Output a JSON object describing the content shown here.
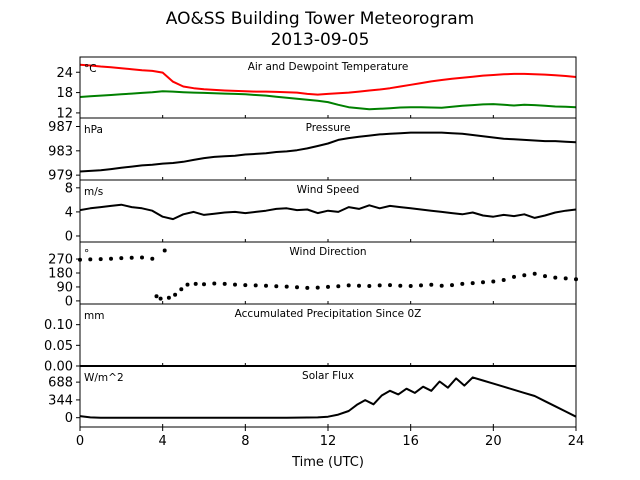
{
  "figure": {
    "title_line1": "AO&SS Building Tower Meteorogram",
    "title_line2": "2013-09-05",
    "xlabel": "Time (UTC)",
    "xlim": [
      0,
      24
    ],
    "xticks": [
      0,
      4,
      8,
      12,
      16,
      20,
      24
    ]
  },
  "chart_data": [
    {
      "type": "line",
      "title": "Air and Dewpoint Temperature",
      "unit_label": "°C",
      "ylim": [
        10.5,
        28.5
      ],
      "yticks": [
        12,
        18,
        24
      ],
      "series": [
        {
          "color": "#ff0000",
          "x": [
            0,
            0.5,
            1,
            1.5,
            2,
            2.5,
            3,
            3.5,
            4,
            4.5,
            5,
            5.5,
            6,
            6.5,
            7,
            7.5,
            8,
            8.5,
            9,
            9.5,
            10,
            10.5,
            11,
            11.5,
            12,
            12.5,
            13,
            13.5,
            14,
            14.5,
            15,
            15.5,
            16,
            16.5,
            17,
            17.5,
            18,
            18.5,
            19,
            19.5,
            20,
            20.5,
            21,
            21.5,
            22,
            22.5,
            23,
            23.5,
            24
          ],
          "y": [
            26.2,
            26.0,
            25.7,
            25.5,
            25.2,
            24.9,
            24.6,
            24.4,
            23.9,
            21.2,
            19.8,
            19.3,
            19.0,
            18.8,
            18.6,
            18.5,
            18.4,
            18.3,
            18.3,
            18.2,
            18.1,
            18.0,
            17.6,
            17.4,
            17.6,
            17.8,
            18.0,
            18.3,
            18.6,
            18.9,
            19.3,
            19.8,
            20.3,
            20.8,
            21.3,
            21.7,
            22.1,
            22.4,
            22.7,
            23.0,
            23.2,
            23.4,
            23.5,
            23.5,
            23.4,
            23.3,
            23.1,
            22.9,
            22.6
          ]
        },
        {
          "color": "#008000",
          "x": [
            0,
            0.5,
            1,
            1.5,
            2,
            2.5,
            3,
            3.5,
            4,
            4.5,
            5,
            5.5,
            6,
            6.5,
            7,
            7.5,
            8,
            8.5,
            9,
            9.5,
            10,
            10.5,
            11,
            11.5,
            12,
            12.5,
            13,
            13.5,
            14,
            14.5,
            15,
            15.5,
            16,
            16.5,
            17,
            17.5,
            18,
            18.5,
            19,
            19.5,
            20,
            20.5,
            21,
            21.5,
            22,
            22.5,
            23,
            23.5,
            24
          ],
          "y": [
            16.7,
            16.9,
            17.1,
            17.3,
            17.5,
            17.7,
            17.9,
            18.1,
            18.4,
            18.3,
            18.1,
            18.0,
            17.9,
            17.8,
            17.7,
            17.6,
            17.5,
            17.3,
            17.1,
            16.8,
            16.5,
            16.2,
            15.9,
            15.6,
            15.2,
            14.4,
            13.7,
            13.4,
            13.1,
            13.2,
            13.4,
            13.6,
            13.7,
            13.7,
            13.6,
            13.5,
            13.8,
            14.1,
            14.3,
            14.5,
            14.6,
            14.4,
            14.2,
            14.4,
            14.3,
            14.1,
            13.9,
            13.8,
            13.7
          ]
        }
      ]
    },
    {
      "type": "line",
      "title": "Pressure",
      "unit_label": "hPa",
      "ylim": [
        978.2,
        988.4
      ],
      "yticks": [
        979,
        983,
        987
      ],
      "series": [
        {
          "color": "#000000",
          "x": [
            0,
            0.5,
            1,
            1.5,
            2,
            2.5,
            3,
            3.5,
            4,
            4.5,
            5,
            5.5,
            6,
            6.5,
            7,
            7.5,
            8,
            8.5,
            9,
            9.5,
            10,
            10.5,
            11,
            11.5,
            12,
            12.5,
            13,
            13.5,
            14,
            14.5,
            15,
            15.5,
            16,
            16.5,
            17,
            17.5,
            18,
            18.5,
            19,
            19.5,
            20,
            20.5,
            21,
            21.5,
            22,
            22.5,
            23,
            23.5,
            24
          ],
          "y": [
            979.6,
            979.7,
            979.8,
            980.0,
            980.2,
            980.4,
            980.6,
            980.7,
            980.9,
            981.0,
            981.2,
            981.5,
            981.8,
            982.0,
            982.1,
            982.2,
            982.4,
            982.5,
            982.6,
            982.8,
            982.9,
            983.1,
            983.4,
            983.8,
            984.2,
            984.8,
            985.1,
            985.3,
            985.5,
            985.7,
            985.8,
            985.9,
            986.0,
            986.0,
            986.0,
            986.0,
            985.9,
            985.8,
            985.6,
            985.4,
            985.2,
            985.0,
            984.9,
            984.8,
            984.7,
            984.6,
            984.6,
            984.5,
            984.4
          ]
        }
      ]
    },
    {
      "type": "line",
      "title": "Wind Speed",
      "unit_label": "m/s",
      "ylim": [
        -1.0,
        9.3
      ],
      "yticks": [
        0,
        4,
        8
      ],
      "series": [
        {
          "color": "#000000",
          "x": [
            0,
            0.5,
            1,
            1.5,
            2,
            2.5,
            3,
            3.5,
            4,
            4.5,
            5,
            5.5,
            6,
            6.5,
            7,
            7.5,
            8,
            8.5,
            9,
            9.5,
            10,
            10.5,
            11,
            11.5,
            12,
            12.5,
            13,
            13.5,
            14,
            14.5,
            15,
            15.5,
            16,
            16.5,
            17,
            17.5,
            18,
            18.5,
            19,
            19.5,
            20,
            20.5,
            21,
            21.5,
            22,
            22.5,
            23,
            23.5,
            24
          ],
          "y": [
            4.3,
            4.6,
            4.8,
            5.0,
            5.2,
            4.8,
            4.6,
            4.2,
            3.2,
            2.8,
            3.6,
            4.0,
            3.5,
            3.7,
            3.9,
            4.0,
            3.8,
            4.0,
            4.2,
            4.5,
            4.6,
            4.3,
            4.4,
            3.8,
            4.2,
            4.0,
            4.8,
            4.5,
            5.1,
            4.6,
            5.0,
            4.8,
            4.6,
            4.4,
            4.2,
            4.0,
            3.8,
            3.6,
            3.9,
            3.4,
            3.2,
            3.5,
            3.3,
            3.6,
            3.0,
            3.4,
            3.9,
            4.2,
            4.4
          ]
        }
      ]
    },
    {
      "type": "scatter",
      "title": "Wind Direction",
      "unit_label": "°",
      "ylim": [
        -20,
        380
      ],
      "yticks": [
        0,
        90,
        180,
        270
      ],
      "series": [
        {
          "color": "#000000",
          "x": [
            0,
            0.5,
            1,
            1.5,
            2,
            2.5,
            3,
            3.5,
            3.7,
            3.9,
            4.1,
            4.3,
            4.6,
            4.9,
            5.2,
            5.6,
            6,
            6.5,
            7,
            7.5,
            8,
            8.5,
            9,
            9.5,
            10,
            10.5,
            11,
            11.5,
            12,
            12.5,
            13,
            13.5,
            14,
            14.5,
            15,
            15.5,
            16,
            16.5,
            17,
            17.5,
            18,
            18.5,
            19,
            19.5,
            20,
            20.5,
            21,
            21.5,
            22,
            22.5,
            23,
            23.5,
            24
          ],
          "y": [
            265,
            268,
            270,
            272,
            276,
            278,
            280,
            272,
            30,
            15,
            325,
            20,
            40,
            75,
            105,
            110,
            108,
            112,
            110,
            105,
            102,
            100,
            98,
            95,
            92,
            88,
            84,
            86,
            90,
            95,
            100,
            98,
            96,
            100,
            102,
            98,
            96,
            100,
            104,
            98,
            102,
            110,
            115,
            120,
            125,
            135,
            155,
            165,
            175,
            160,
            150,
            145,
            140
          ]
        }
      ]
    },
    {
      "type": "line",
      "title": "Accumulated Precipitation Since 0Z",
      "unit_label": "mm",
      "ylim": [
        0,
        0.15
      ],
      "yticks": [
        "0.00",
        "0.05",
        "0.10"
      ],
      "series": [
        {
          "color": "#000000",
          "x": [
            0,
            24
          ],
          "y": [
            0,
            0
          ]
        }
      ]
    },
    {
      "type": "line",
      "title": "Solar Flux",
      "unit_label": "W/m^2",
      "ylim": [
        -180,
        1000
      ],
      "yticks": [
        0,
        344,
        688
      ],
      "series": [
        {
          "color": "#000000",
          "x": [
            0,
            0.5,
            1,
            2,
            4,
            6,
            8,
            10,
            11.5,
            12,
            12.5,
            13,
            13.4,
            13.8,
            14.2,
            14.6,
            15,
            15.4,
            15.8,
            16.2,
            16.6,
            17,
            17.4,
            17.8,
            18.2,
            18.6,
            19,
            19.5,
            20,
            20.5,
            21,
            21.5,
            22,
            22.5,
            23,
            23.5,
            24
          ],
          "y": [
            30,
            5,
            0,
            0,
            0,
            0,
            0,
            0,
            5,
            20,
            60,
            130,
            250,
            340,
            260,
            430,
            520,
            450,
            560,
            480,
            600,
            520,
            700,
            580,
            760,
            620,
            780,
            720,
            660,
            600,
            540,
            480,
            420,
            320,
            220,
            120,
            20
          ]
        }
      ]
    }
  ]
}
